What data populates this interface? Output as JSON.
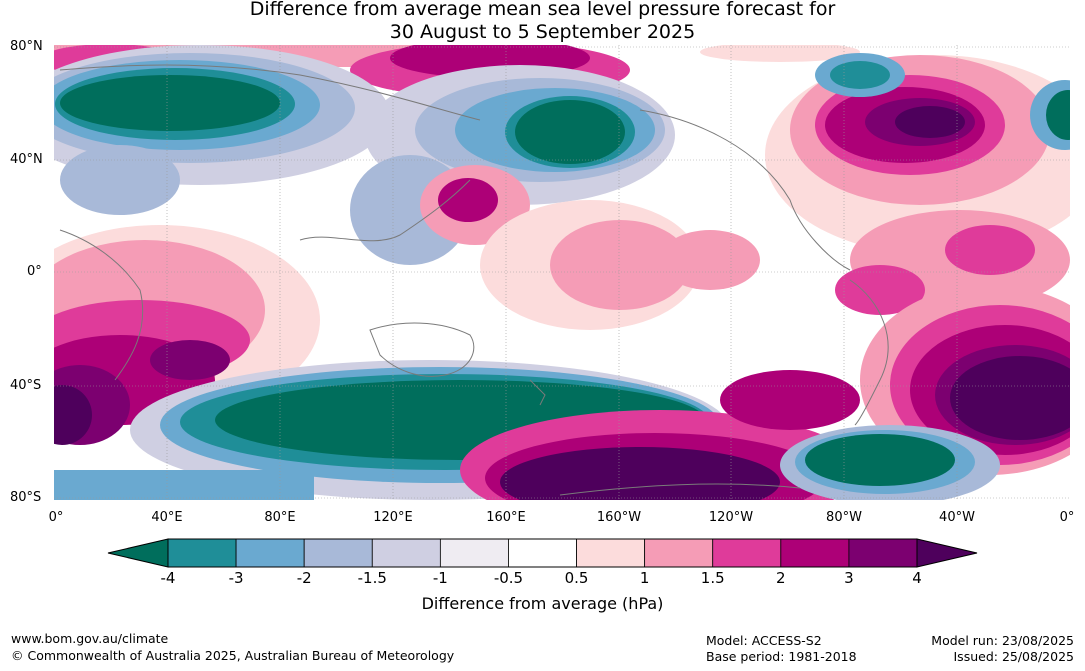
{
  "title": {
    "line1": "Difference from average mean sea level pressure forecast for",
    "line2": "30 August to 5 September 2025"
  },
  "map": {
    "lat_labels": [
      "80°N",
      "40°N",
      "0°",
      "40°S",
      "80°S"
    ],
    "lon_labels": [
      "0°",
      "40°E",
      "80°E",
      "120°E",
      "160°E",
      "160°W",
      "120°W",
      "80°W",
      "40°W",
      "0°"
    ]
  },
  "colorbar": {
    "ticks": [
      "-4",
      "-3",
      "-2",
      "-1.5",
      "-1",
      "-0.5",
      "0.5",
      "1",
      "1.5",
      "2",
      "3",
      "4"
    ],
    "colors": [
      "#006e5c",
      "#1f8e98",
      "#6aa9d0",
      "#a8b9d8",
      "#cfcfe2",
      "#efecf2",
      "#ffffff",
      "#fcdcdc",
      "#f59cb6",
      "#df3b9a",
      "#ad0077",
      "#7c0070",
      "#4e005c"
    ],
    "title": "Difference from average (hPa)"
  },
  "footer": {
    "website": "www.bom.gov.au/climate",
    "copyright": "© Commonwealth of Australia 2025, Australian Bureau of Meteorology",
    "model": "Model: ACCESS-S2",
    "base_period": "Base period: 1981-2018",
    "model_run": "Model run: 23/08/2025",
    "issued": "Issued: 25/08/2025"
  }
}
